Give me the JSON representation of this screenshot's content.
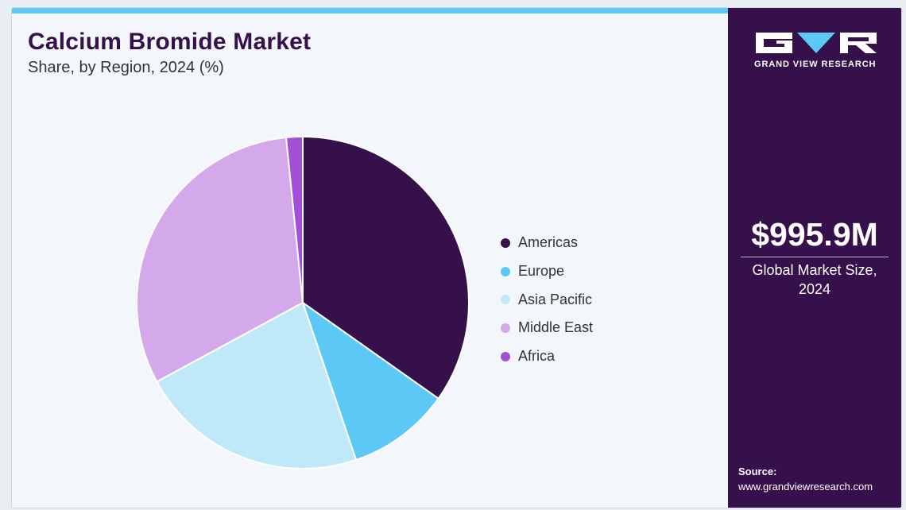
{
  "header": {
    "title": "Calcium Bromide Market",
    "subtitle": "Share, by Region, 2024 (%)"
  },
  "chart_data": {
    "type": "pie",
    "title": "Calcium Bromide Market",
    "subtitle": "Share, by Region, 2024 (%)",
    "categories": [
      "Americas",
      "Europe",
      "Asia Pacific",
      "Middle East",
      "Africa"
    ],
    "values": [
      34.8,
      10.0,
      22.3,
      31.3,
      1.6
    ],
    "colors": [
      "#36104a",
      "#5bc8f5",
      "#bfe9f9",
      "#d4a9eb",
      "#a24ed6"
    ],
    "legend": "right"
  },
  "sidebar": {
    "logo_text": "GRAND VIEW RESEARCH",
    "logo_icon": "gvr-logo-icon",
    "market_size": "$995.9M",
    "market_size_label": "Global Market Size, 2024",
    "source_label": "Source:",
    "source_url": "www.grandviewresearch.com"
  },
  "colors": {
    "accent": "#5bc8f5",
    "brand": "#36104a",
    "background": "#f3f7fb"
  }
}
